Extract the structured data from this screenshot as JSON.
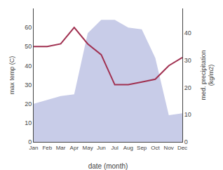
{
  "chart_data": {
    "type": "combo",
    "categories": [
      "Jan",
      "Feb",
      "Mar",
      "Apr",
      "May",
      "Jun",
      "Jul",
      "Aug",
      "Sep",
      "Oct",
      "Nov",
      "Dec"
    ],
    "xlabel": "date (month)",
    "ylabel": "max temp (C)",
    "y2label": "med. precipitation\n(kg/m2)",
    "series": [
      {
        "type": "area",
        "color": "#c8cce8",
        "values": [
          20,
          22,
          24,
          25,
          57,
          64,
          64,
          60,
          59,
          44,
          14,
          15
        ]
      },
      {
        "type": "line",
        "color": "#a03050",
        "axis": "y2",
        "values": [
          35,
          35,
          36,
          42,
          36,
          32,
          21,
          21,
          22,
          23,
          28,
          31
        ]
      }
    ],
    "ylim": [
      0,
      70
    ],
    "yticks": [
      0,
      10,
      20,
      30,
      40,
      50,
      60
    ],
    "y2lim": [
      0,
      49
    ],
    "y2ticks": [
      0,
      10,
      20,
      30,
      40
    ],
    "grid": false
  }
}
